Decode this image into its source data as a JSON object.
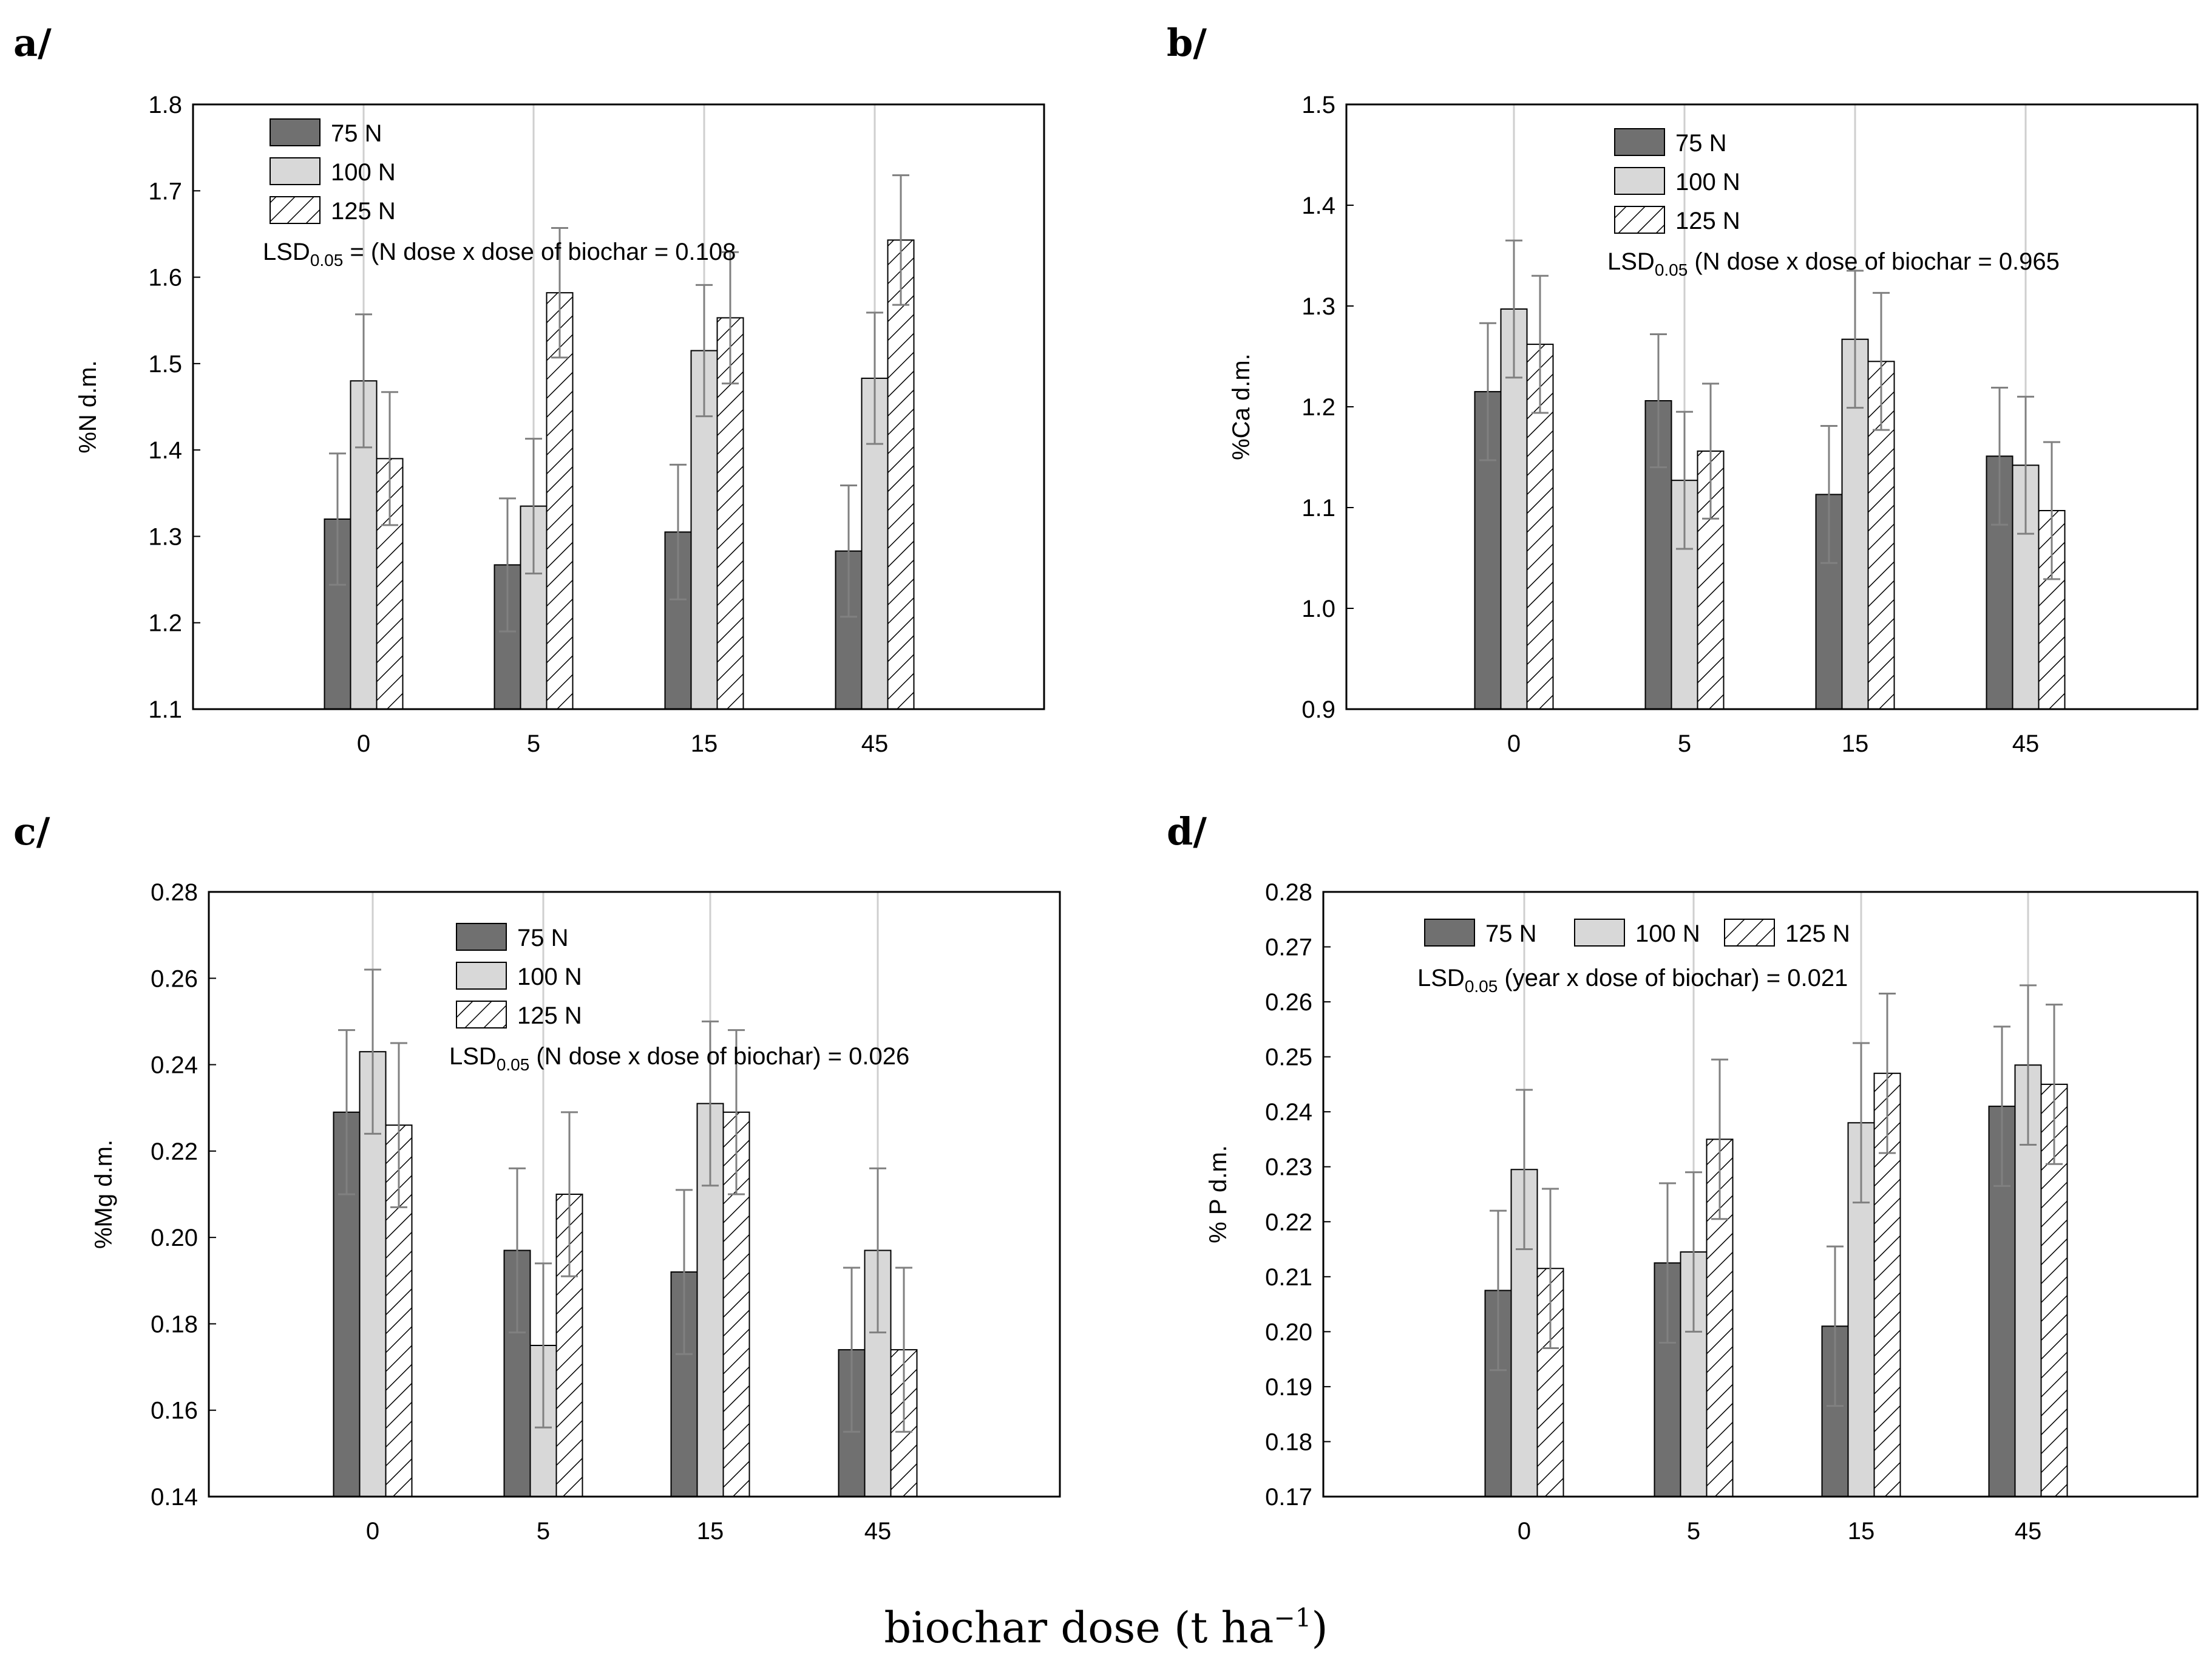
{
  "figure": {
    "x_title": "biochar dose (t ha",
    "x_title_sup": "−1",
    "x_title_end": ")",
    "colors": {
      "s75": "#707070",
      "s100": "#d8d8d8",
      "s125": "#ffffff",
      "grid": "#cfcfcf",
      "err": "#808080",
      "axis": "#000000"
    }
  },
  "chart_data": [
    {
      "type": "bar",
      "panel": "a/",
      "ylabel": "%N d.m.",
      "categories": [
        "0",
        "5",
        "15",
        "45"
      ],
      "ylim": [
        1.1,
        1.8
      ],
      "yticks": [
        "1.1",
        "1.2",
        "1.3",
        "1.4",
        "1.5",
        "1.6",
        "1.7",
        "1.8"
      ],
      "legend_position": "top-left",
      "legend_layout": "vertical",
      "lsd_prefix": "LSD",
      "lsd_sub": "0.05",
      "lsd_text": " = (N dose x dose of biochar = 0.108",
      "series": [
        {
          "name": "75 N",
          "values": [
            1.32,
            1.267,
            1.305,
            1.283
          ],
          "errors": [
            0.076,
            0.077,
            0.078,
            0.076
          ]
        },
        {
          "name": "100 N",
          "values": [
            1.48,
            1.335,
            1.515,
            1.483
          ],
          "errors": [
            0.077,
            0.078,
            0.076,
            0.076
          ]
        },
        {
          "name": "125 N",
          "values": [
            1.39,
            1.582,
            1.553,
            1.643
          ],
          "errors": [
            0.077,
            0.075,
            0.076,
            0.075
          ]
        }
      ]
    },
    {
      "type": "bar",
      "panel": "b/",
      "ylabel": "%Ca d.m.",
      "categories": [
        "0",
        "5",
        "15",
        "45"
      ],
      "ylim": [
        0.9,
        1.5
      ],
      "yticks": [
        "0.9",
        "1.0",
        "1.1",
        "1.2",
        "1.3",
        "1.4",
        "1.5"
      ],
      "legend_position": "top-center",
      "legend_layout": "vertical",
      "lsd_prefix": "LSD",
      "lsd_sub": "0.05",
      "lsd_text": " (N dose x dose of biochar = 0.965",
      "series": [
        {
          "name": "75 N",
          "values": [
            1.215,
            1.206,
            1.113,
            1.151
          ],
          "errors": [
            0.068,
            0.066,
            0.068,
            0.068
          ]
        },
        {
          "name": "100 N",
          "values": [
            1.297,
            1.127,
            1.267,
            1.142
          ],
          "errors": [
            0.068,
            0.068,
            0.068,
            0.068
          ]
        },
        {
          "name": "125 N",
          "values": [
            1.262,
            1.156,
            1.245,
            1.097
          ],
          "errors": [
            0.068,
            0.067,
            0.068,
            0.068
          ]
        }
      ]
    },
    {
      "type": "bar",
      "panel": "c/",
      "ylabel": "%Mg d.m.",
      "categories": [
        "0",
        "5",
        "15",
        "45"
      ],
      "ylim": [
        0.14,
        0.28
      ],
      "yticks": [
        "0.14",
        "0.16",
        "0.18",
        "0.20",
        "0.22",
        "0.24",
        "0.26",
        "0.28"
      ],
      "legend_position": "top-center",
      "legend_layout": "vertical",
      "lsd_prefix": "LSD",
      "lsd_sub": "0.05",
      "lsd_text": " (N dose x dose of biochar) = 0.026",
      "series": [
        {
          "name": "75 N",
          "values": [
            0.229,
            0.197,
            0.192,
            0.174
          ],
          "errors": [
            0.019,
            0.019,
            0.019,
            0.019
          ]
        },
        {
          "name": "100 N",
          "values": [
            0.243,
            0.175,
            0.231,
            0.197
          ],
          "errors": [
            0.019,
            0.019,
            0.019,
            0.019
          ]
        },
        {
          "name": "125 N",
          "values": [
            0.226,
            0.21,
            0.229,
            0.174
          ],
          "errors": [
            0.019,
            0.019,
            0.019,
            0.019
          ]
        }
      ]
    },
    {
      "type": "bar",
      "panel": "d/",
      "ylabel": "% P d.m.",
      "categories": [
        "0",
        "5",
        "15",
        "45"
      ],
      "ylim": [
        0.17,
        0.28
      ],
      "yticks": [
        "0.17",
        "0.18",
        "0.19",
        "0.20",
        "0.21",
        "0.22",
        "0.23",
        "0.24",
        "0.25",
        "0.26",
        "0.27",
        "0.28"
      ],
      "legend_position": "top-left",
      "legend_layout": "horizontal",
      "lsd_prefix": "LSD",
      "lsd_sub": "0.05",
      "lsd_text": " (year x dose of biochar) = 0.021",
      "series": [
        {
          "name": "75 N",
          "values": [
            0.2075,
            0.2125,
            0.201,
            0.241
          ],
          "errors": [
            0.0145,
            0.0145,
            0.0145,
            0.0145
          ]
        },
        {
          "name": "100 N",
          "values": [
            0.2295,
            0.2145,
            0.238,
            0.2485
          ],
          "errors": [
            0.0145,
            0.0145,
            0.0145,
            0.0145
          ]
        },
        {
          "name": "125 N",
          "values": [
            0.2115,
            0.235,
            0.247,
            0.245
          ],
          "errors": [
            0.0145,
            0.0145,
            0.0145,
            0.0145
          ]
        }
      ]
    }
  ]
}
